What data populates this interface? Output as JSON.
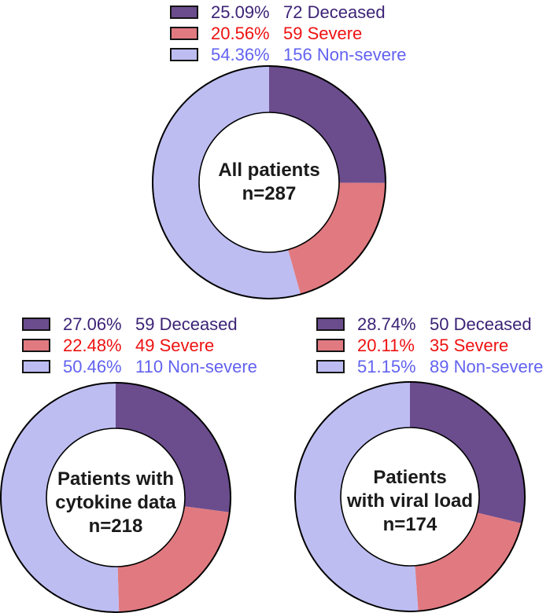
{
  "figure_title": "",
  "colors": {
    "deceased_fill": "#6b4d8e",
    "severe_fill": "#e07a80",
    "nonsevere_fill": "#bdbdf2",
    "deceased_text": "#3c2376",
    "severe_text": "#ee1111",
    "nonsevere_text": "#6262f0",
    "outline": "#000000",
    "hole_fill": "#ffffff",
    "center_text": "#1a1a1a"
  },
  "chart_data": [
    {
      "type": "pie",
      "subtype": "donut",
      "id": "all-patients",
      "center_label_lines": [
        "All patients",
        "n=287"
      ],
      "n": 287,
      "start_angle": "12-oclock",
      "direction": "clockwise",
      "legend_position": "top",
      "segments": [
        {
          "label": "Deceased",
          "count": 72,
          "pct": 25.09,
          "pct_label": "25.09%",
          "count_label": "72 Deceased",
          "color_key": "deceased"
        },
        {
          "label": "Severe",
          "count": 59,
          "pct": 20.56,
          "pct_label": "20.56%",
          "count_label": "59 Severe",
          "color_key": "severe"
        },
        {
          "label": "Non-severe",
          "count": 156,
          "pct": 54.36,
          "pct_label": "54.36%",
          "count_label": "156 Non-severe",
          "color_key": "nonsevere"
        }
      ]
    },
    {
      "type": "pie",
      "subtype": "donut",
      "id": "cytokine-data",
      "center_label_lines": [
        "Patients with",
        "cytokine data",
        "n=218"
      ],
      "n": 218,
      "start_angle": "12-oclock",
      "direction": "clockwise",
      "legend_position": "top",
      "segments": [
        {
          "label": "Deceased",
          "count": 59,
          "pct": 27.06,
          "pct_label": "27.06%",
          "count_label": "59 Deceased",
          "color_key": "deceased"
        },
        {
          "label": "Severe",
          "count": 49,
          "pct": 22.48,
          "pct_label": "22.48%",
          "count_label": "49 Severe",
          "color_key": "severe"
        },
        {
          "label": "Non-severe",
          "count": 110,
          "pct": 50.46,
          "pct_label": "50.46%",
          "count_label": "110 Non-severe",
          "color_key": "nonsevere"
        }
      ]
    },
    {
      "type": "pie",
      "subtype": "donut",
      "id": "viral-load",
      "center_label_lines": [
        "Patients",
        "with viral load",
        "n=174"
      ],
      "n": 174,
      "start_angle": "12-oclock",
      "direction": "clockwise",
      "legend_position": "top",
      "segments": [
        {
          "label": "Deceased",
          "count": 50,
          "pct": 28.74,
          "pct_label": "28.74%",
          "count_label": "50 Deceased",
          "color_key": "deceased"
        },
        {
          "label": "Severe",
          "count": 35,
          "pct": 20.11,
          "pct_label": "20.11%",
          "count_label": "35 Severe",
          "color_key": "severe"
        },
        {
          "label": "Non-severe",
          "count": 89,
          "pct": 51.15,
          "pct_label": "51.15%",
          "count_label": "89 Non-severe",
          "color_key": "nonsevere"
        }
      ]
    }
  ]
}
